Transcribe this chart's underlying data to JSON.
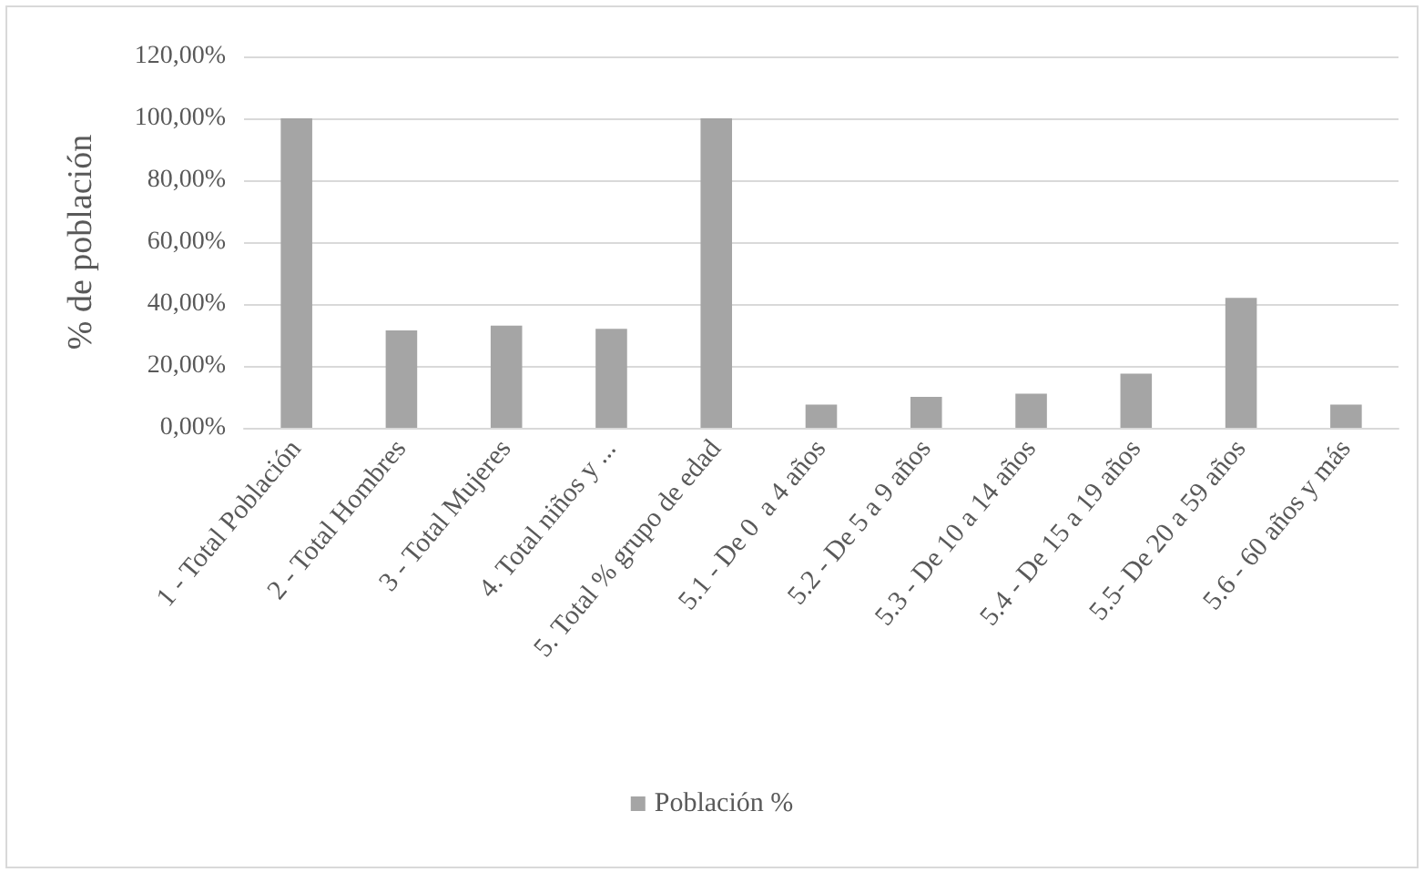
{
  "chart_data": {
    "type": "bar",
    "categories": [
      "1 - Total Población",
      "2 - Total Hombres",
      "3 - Total Mujeres",
      "4. Total niños y ...",
      "5. Total % grupo de edad",
      "5.1 - De 0  a 4 años",
      "5.2 - De 5 a 9 años",
      "5.3 - De 10 a 14 años",
      "5.4 - De 15 a 19 años",
      "5.5- De 20 a 59 años",
      "5.6 - 60 años y más"
    ],
    "series": [
      {
        "name": "Población %",
        "color": "#a5a5a5",
        "values": [
          100,
          31.5,
          33,
          32,
          100,
          7.5,
          10,
          11,
          17.5,
          42,
          7.5
        ]
      }
    ],
    "ylabel": "% de población",
    "ylim": [
      0,
      120
    ],
    "yticks": [
      {
        "value": 0,
        "label": "0,00%"
      },
      {
        "value": 20,
        "label": "20,00%"
      },
      {
        "value": 40,
        "label": "40,00%"
      },
      {
        "value": 60,
        "label": "60,00%"
      },
      {
        "value": 80,
        "label": "80,00%"
      },
      {
        "value": 100,
        "label": "100,00%"
      },
      {
        "value": 120,
        "label": "120,00%"
      }
    ],
    "grid": "y",
    "legend": "bottom"
  }
}
